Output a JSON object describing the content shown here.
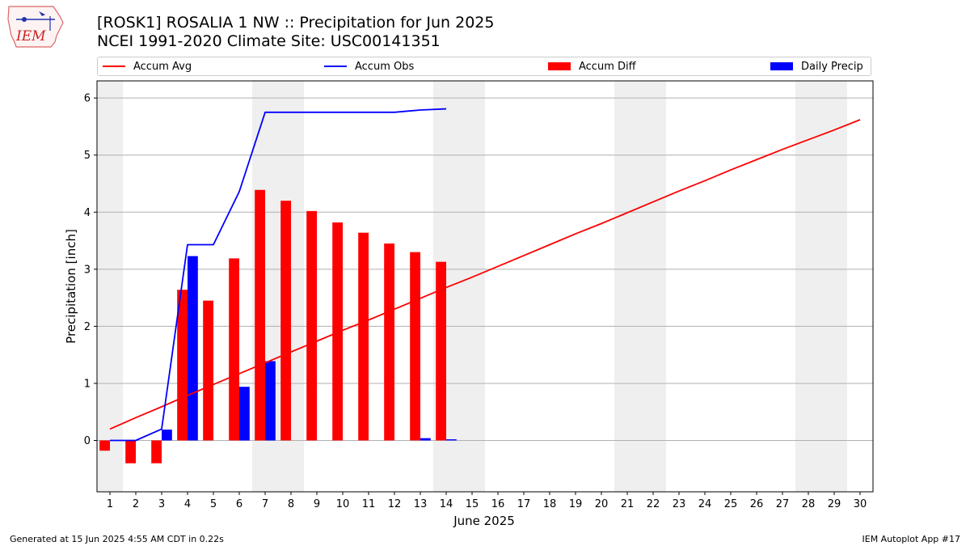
{
  "header": {
    "logo_text": "IEM",
    "title_line1": "[ROSK1] ROSALIA 1 NW :: Precipitation for Jun 2025",
    "title_line2": "NCEI 1991-2020 Climate Site: USC00141351"
  },
  "footer": {
    "generated": "Generated at 15 Jun 2025 4:55 AM CDT in 0.22s",
    "app": "IEM Autoplot App #17"
  },
  "chart_data": {
    "type": "bar",
    "title": "[ROSK1] ROSALIA 1 NW :: Precipitation for Jun 2025",
    "subtitle": "NCEI 1991-2020 Climate Site: USC00141351",
    "xlabel": "June 2025",
    "ylabel": "Precipitation [inch]",
    "x": [
      1,
      2,
      3,
      4,
      5,
      6,
      7,
      8,
      9,
      10,
      11,
      12,
      13,
      14,
      15,
      16,
      17,
      18,
      19,
      20,
      21,
      22,
      23,
      24,
      25,
      26,
      27,
      28,
      29,
      30
    ],
    "xlim": [
      0.5,
      30.5
    ],
    "ylim": [
      -0.9,
      6.3
    ],
    "yticks": [
      0,
      1,
      2,
      3,
      4,
      5,
      6
    ],
    "grid": "horizontal",
    "weekend_shading": [
      [
        0.5,
        1.5
      ],
      [
        6.5,
        8.5
      ],
      [
        13.5,
        15.5
      ],
      [
        20.5,
        22.5
      ],
      [
        27.5,
        29.5
      ]
    ],
    "legend_position": "top",
    "series": [
      {
        "name": "Accum Avg",
        "kind": "line",
        "color": "#ff0000",
        "x": [
          1,
          2,
          3,
          4,
          5,
          6,
          7,
          8,
          9,
          10,
          11,
          12,
          13,
          14,
          15,
          16,
          17,
          18,
          19,
          20,
          21,
          22,
          23,
          24,
          25,
          26,
          27,
          28,
          29,
          30
        ],
        "values": [
          0.2,
          0.4,
          0.59,
          0.79,
          0.98,
          1.17,
          1.36,
          1.55,
          1.74,
          1.93,
          2.11,
          2.3,
          2.49,
          2.68,
          2.86,
          3.05,
          3.24,
          3.43,
          3.62,
          3.8,
          3.99,
          4.18,
          4.37,
          4.55,
          4.74,
          4.92,
          5.1,
          5.27,
          5.44,
          5.62
        ]
      },
      {
        "name": "Accum Obs",
        "kind": "line",
        "color": "#0000ff",
        "x": [
          1,
          2,
          3,
          4,
          5,
          6,
          7,
          8,
          9,
          10,
          11,
          12,
          13,
          14
        ],
        "values": [
          0.0,
          0.0,
          0.2,
          3.43,
          3.43,
          4.36,
          5.75,
          5.75,
          5.75,
          5.75,
          5.75,
          5.75,
          5.79,
          5.81
        ]
      },
      {
        "name": "Accum Diff",
        "kind": "bar",
        "color": "#ff0000",
        "x": [
          1,
          2,
          3,
          4,
          5,
          6,
          7,
          8,
          9,
          10,
          11,
          12,
          13,
          14
        ],
        "values": [
          -0.18,
          -0.4,
          -0.4,
          2.64,
          2.45,
          3.19,
          4.39,
          4.2,
          4.02,
          3.82,
          3.64,
          3.45,
          3.3,
          3.13
        ]
      },
      {
        "name": "Daily Precip",
        "kind": "bar",
        "color": "#0000ff",
        "x": [
          1,
          2,
          3,
          4,
          5,
          6,
          7,
          8,
          9,
          10,
          11,
          12,
          13,
          14
        ],
        "values": [
          0.0,
          0.0,
          0.19,
          3.23,
          0.0,
          0.94,
          1.39,
          0.0,
          0.0,
          0.0,
          0.0,
          0.0,
          0.04,
          0.02
        ]
      }
    ]
  }
}
